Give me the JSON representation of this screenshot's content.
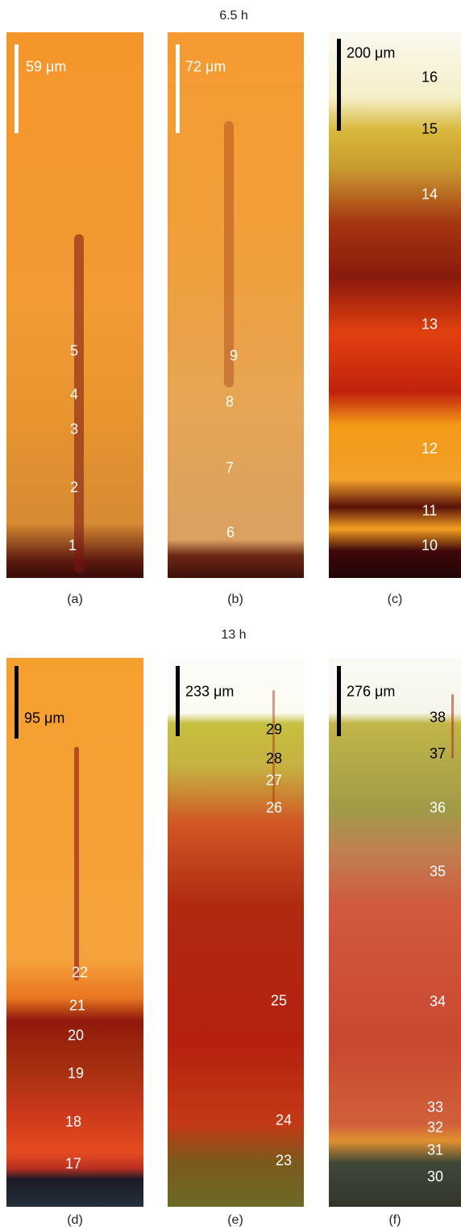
{
  "groups": [
    {
      "title": "6.5 h",
      "panels": [
        {
          "caption": "(a)",
          "scale": "59 μm",
          "labels": [
            "1",
            "2",
            "3",
            "4",
            "5"
          ]
        },
        {
          "caption": "(b)",
          "scale": "72 μm",
          "labels": [
            "6",
            "7",
            "8",
            "9"
          ]
        },
        {
          "caption": "(c)",
          "scale": "200 μm",
          "labels": [
            "10",
            "11",
            "12",
            "13",
            "14",
            "15",
            "16"
          ]
        }
      ]
    },
    {
      "title": "13 h",
      "panels": [
        {
          "caption": "(d)",
          "scale": "95 μm",
          "labels": [
            "17",
            "18",
            "19",
            "20",
            "21",
            "22"
          ]
        },
        {
          "caption": "(e)",
          "scale": "233 μm",
          "labels": [
            "23",
            "24",
            "25",
            "26",
            "27",
            "28",
            "29"
          ]
        },
        {
          "caption": "(f)",
          "scale": "276 μm",
          "labels": [
            "30",
            "31",
            "32",
            "33",
            "34",
            "35",
            "36",
            "37",
            "38"
          ]
        }
      ]
    }
  ]
}
